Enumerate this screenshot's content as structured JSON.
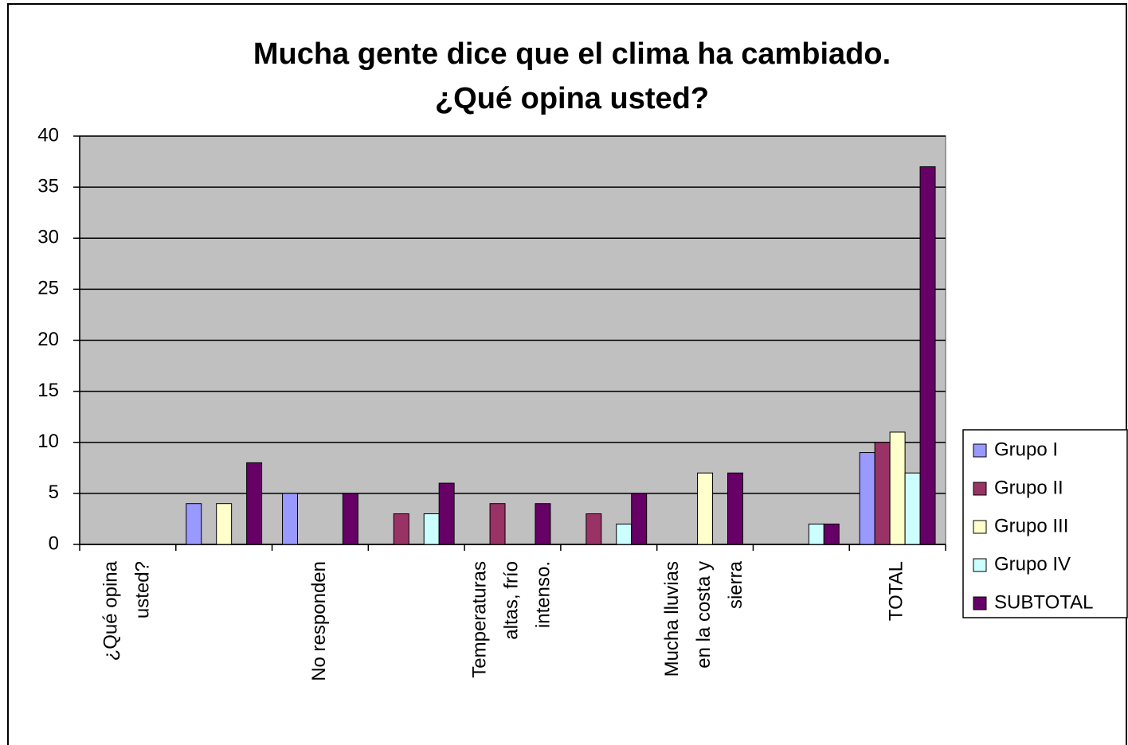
{
  "chart_data": {
    "type": "bar",
    "title": "Mucha gente dice que el clima ha cambiado. ¿Qué opina usted?",
    "categories": [
      "¿Qué opina usted?",
      null,
      "No responden",
      null,
      "Temperaturas altas, frío intenso.",
      null,
      "Mucha lluvias en la costa y sierra",
      null,
      "TOTAL"
    ],
    "series": [
      {
        "name": "Grupo I",
        "color": "#9999ff",
        "values": [
          null,
          4,
          5,
          null,
          null,
          null,
          null,
          null,
          9
        ]
      },
      {
        "name": "Grupo II",
        "color": "#993366",
        "values": [
          null,
          null,
          null,
          3,
          4,
          3,
          null,
          null,
          10
        ]
      },
      {
        "name": "Grupo III",
        "color": "#ffffcc",
        "values": [
          null,
          4,
          null,
          null,
          null,
          null,
          7,
          null,
          11
        ]
      },
      {
        "name": "Grupo IV",
        "color": "#ccffff",
        "values": [
          null,
          null,
          null,
          3,
          null,
          2,
          null,
          2,
          7
        ]
      },
      {
        "name": "SUBTOTAL",
        "color": "#660066",
        "values": [
          null,
          8,
          5,
          6,
          4,
          5,
          7,
          2,
          37
        ]
      }
    ],
    "ylim": [
      0,
      40
    ],
    "yticks": [
      0,
      5,
      10,
      15,
      20,
      25,
      30,
      35,
      40
    ],
    "grid": true,
    "plot_background": "#c0c0c0",
    "legend": "right"
  }
}
